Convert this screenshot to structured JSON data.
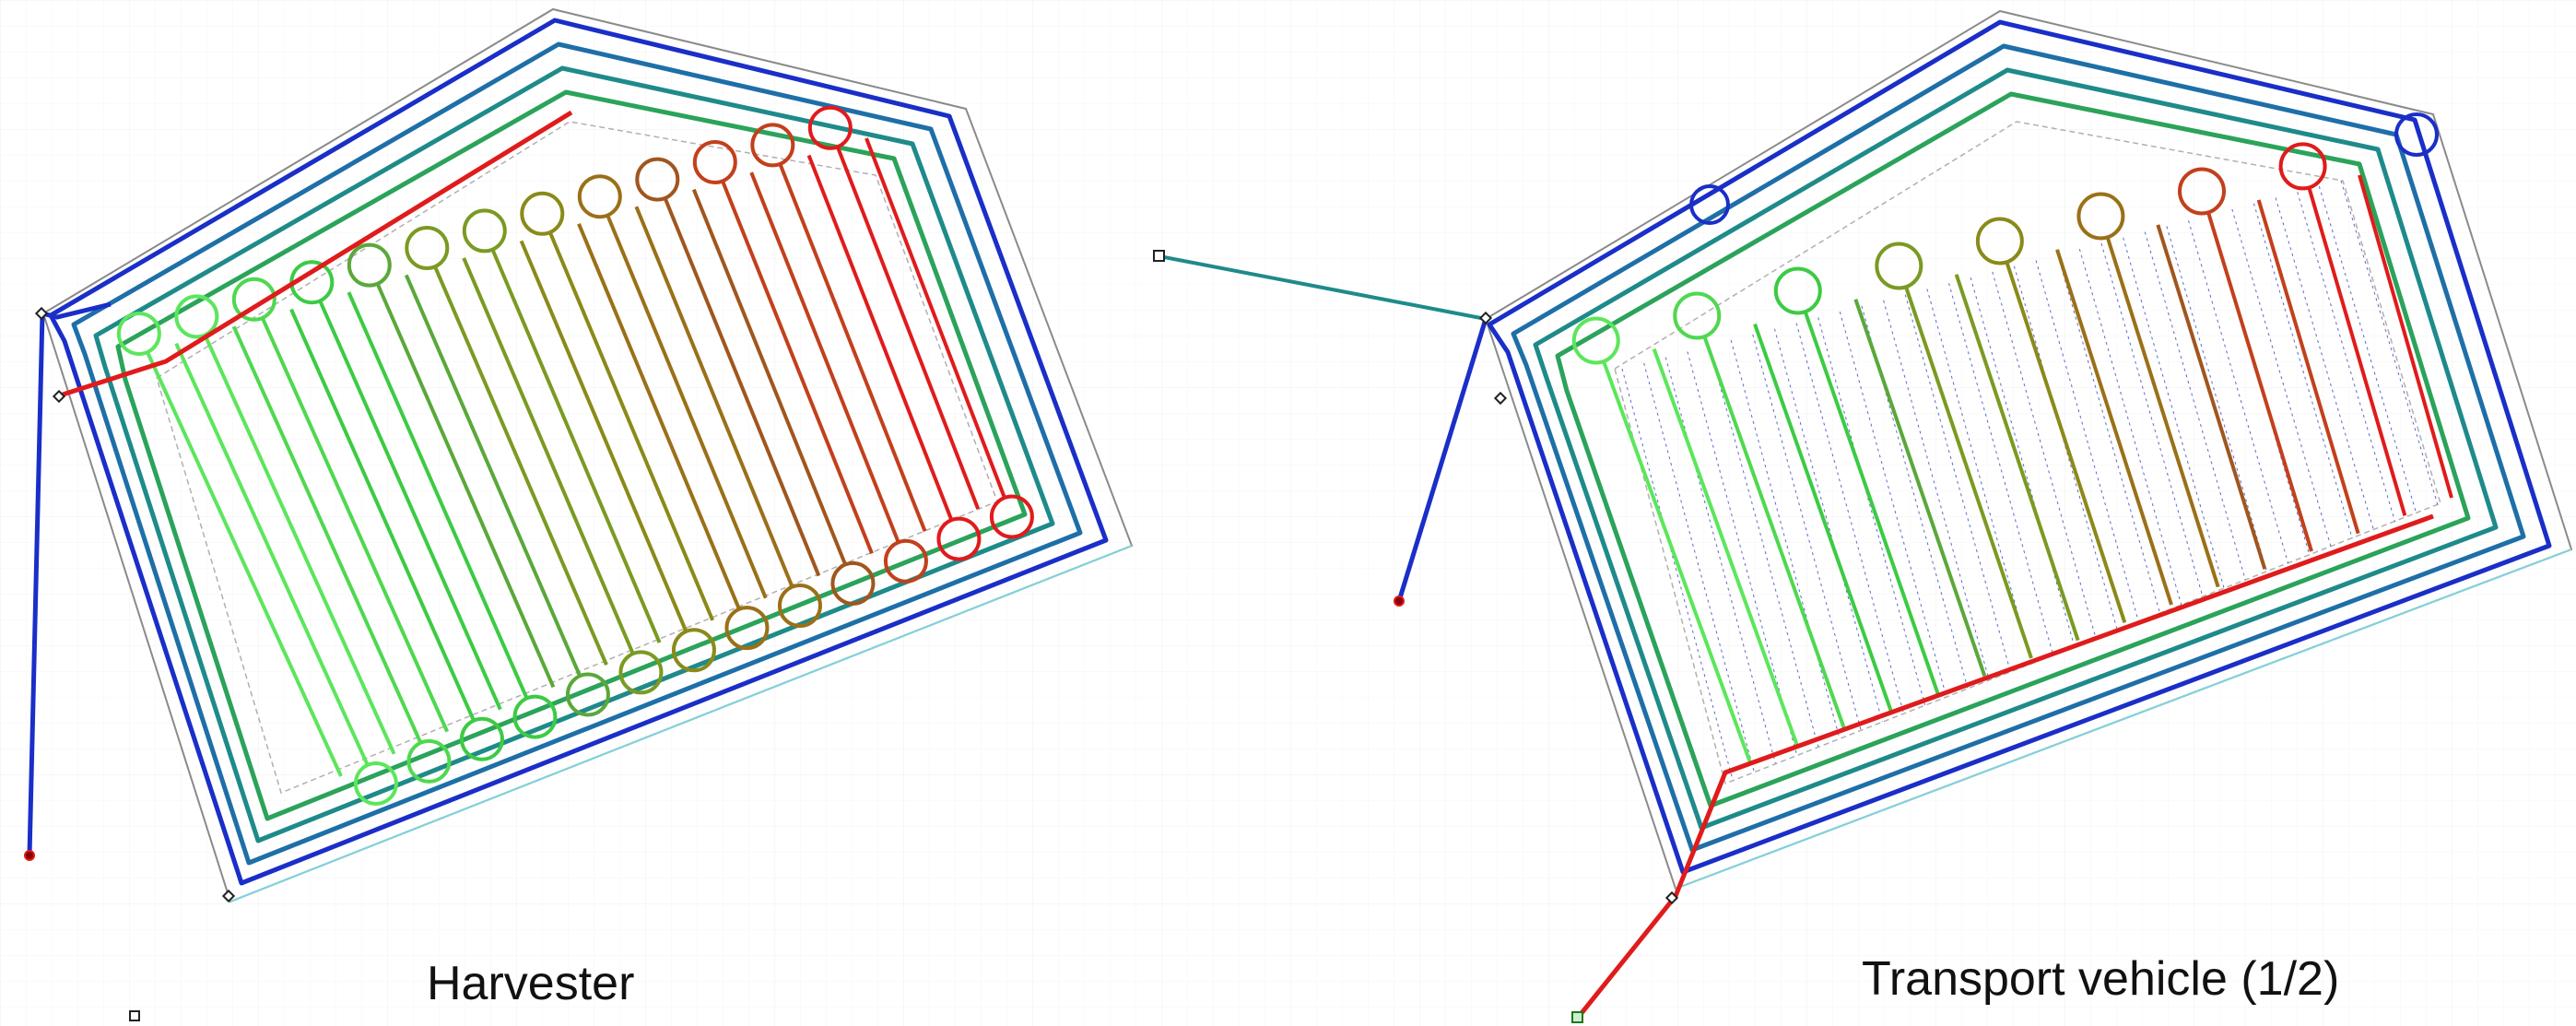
{
  "panels": {
    "harvester": {
      "label": "Harvester"
    },
    "transport": {
      "label": "Transport vehicle (1/2)"
    }
  },
  "colors": {
    "background": "#ffffff",
    "grid": "#ececec",
    "field_boundary": "#8a8a8a",
    "field_edge_accent": "#7fd3dc",
    "path_start": "#1a2ec8",
    "path_mid_teal": "#1f8a8a",
    "path_mid_green": "#2ecc40",
    "path_light_green": "#5ce65c",
    "path_olive": "#8a8a1a",
    "path_brown": "#a0561e",
    "path_end": "#e01b1b",
    "marker_fill": "#8b0000",
    "node_outline": "#222222"
  },
  "icons": {
    "start_marker": "red-dot-icon",
    "vertex_marker": "diamond-node-icon",
    "depot_marker": "square-node-icon"
  }
}
